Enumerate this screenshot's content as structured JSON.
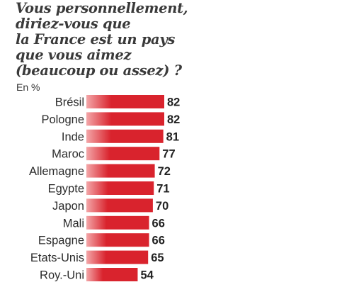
{
  "colors": {
    "bar": "#d9232d",
    "bar_light": "#f3a6a8",
    "title": "#3a3a3a"
  },
  "chart_data": {
    "type": "bar",
    "orientation": "horizontal",
    "title_lines": [
      "Vous personnellement,",
      "diriez-vous que",
      "la France est un pays",
      "que vous aimez",
      "(beaucoup ou assez) ?"
    ],
    "unit": "En %",
    "categories": [
      "Brésil",
      "Pologne",
      "Inde",
      "Maroc",
      "Allemagne",
      "Egypte",
      "Japon",
      "Mali",
      "Espagne",
      "Etats-Unis",
      "Roy.-Uni"
    ],
    "values": [
      82,
      82,
      81,
      77,
      72,
      71,
      70,
      66,
      66,
      65,
      54
    ],
    "grid": false,
    "legend": "none"
  }
}
